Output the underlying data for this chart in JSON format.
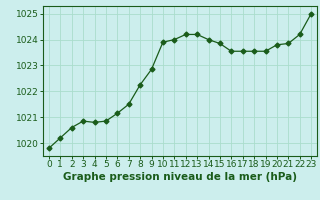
{
  "x": [
    0,
    1,
    2,
    3,
    4,
    5,
    6,
    7,
    8,
    9,
    10,
    11,
    12,
    13,
    14,
    15,
    16,
    17,
    18,
    19,
    20,
    21,
    22,
    23
  ],
  "y": [
    1019.8,
    1020.2,
    1020.6,
    1020.85,
    1020.8,
    1020.85,
    1021.15,
    1021.5,
    1022.25,
    1022.85,
    1023.9,
    1024.0,
    1024.2,
    1024.2,
    1024.0,
    1023.85,
    1023.55,
    1023.55,
    1023.55,
    1023.55,
    1023.8,
    1023.85,
    1024.2,
    1025.0
  ],
  "line_color": "#1a5c1a",
  "marker": "D",
  "marker_size": 2.5,
  "bg_color": "#cceeed",
  "grid_color": "#aaddcc",
  "xlabel": "Graphe pression niveau de la mer (hPa)",
  "xlabel_color": "#1a5c1a",
  "xlabel_fontsize": 7.5,
  "tick_label_color": "#1a5c1a",
  "tick_fontsize": 6.5,
  "ylim": [
    1019.5,
    1025.3
  ],
  "xlim": [
    -0.5,
    23.5
  ],
  "yticks": [
    1020,
    1021,
    1022,
    1023,
    1024,
    1025
  ],
  "xticks": [
    0,
    1,
    2,
    3,
    4,
    5,
    6,
    7,
    8,
    9,
    10,
    11,
    12,
    13,
    14,
    15,
    16,
    17,
    18,
    19,
    20,
    21,
    22,
    23
  ]
}
